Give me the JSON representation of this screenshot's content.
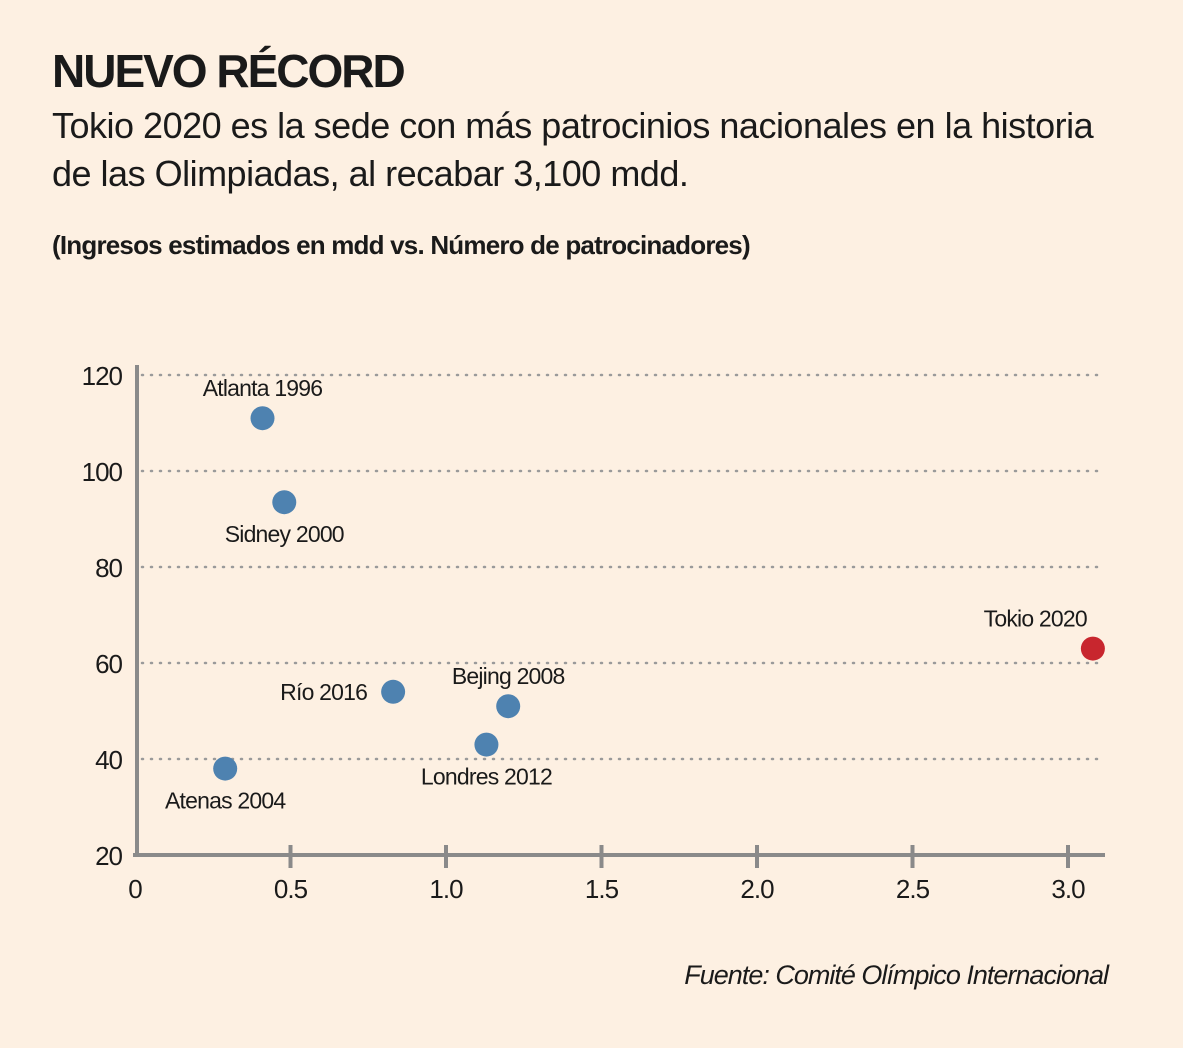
{
  "title": "NUEVO RÉCORD",
  "subtitle": "Tokio 2020 es la sede con más patrocinios nacionales en la historia de las Olimpiadas, al recabar 3,100 mdd.",
  "caption": "(Ingresos estimados en mdd vs. Número de patrocinadores)",
  "source": "Fuente: Comité Olímpico Internacional",
  "chart_data": {
    "type": "scatter",
    "xlim": [
      0,
      3.1
    ],
    "ylim": [
      20,
      120
    ],
    "x_ticks": [
      "0",
      "0.5",
      "1.0",
      "1.5",
      "2.0",
      "2.5",
      "3.0"
    ],
    "x_tick_values": [
      0,
      0.5,
      1.0,
      1.5,
      2.0,
      2.5,
      3.0
    ],
    "y_ticks": [
      "20",
      "40",
      "60",
      "80",
      "100",
      "120"
    ],
    "y_tick_values": [
      20,
      40,
      60,
      80,
      100,
      120
    ],
    "grid": "horizontal dotted",
    "colors": {
      "default": "#4e82b0",
      "highlight": "#c8262e",
      "axis": "#8a8a8a",
      "grid": "#9a9a9a"
    },
    "points": [
      {
        "label": "Atlanta 1996",
        "x": 0.41,
        "y": 111,
        "label_pos": "above",
        "highlight": false
      },
      {
        "label": "Sidney 2000",
        "x": 0.48,
        "y": 93.5,
        "label_pos": "below",
        "highlight": false
      },
      {
        "label": "Atenas 2004",
        "x": 0.29,
        "y": 38,
        "label_pos": "below",
        "highlight": false
      },
      {
        "label": "Bejing 2008",
        "x": 1.2,
        "y": 51,
        "label_pos": "above",
        "highlight": false
      },
      {
        "label": "Londres 2012",
        "x": 1.13,
        "y": 43,
        "label_pos": "below",
        "highlight": false
      },
      {
        "label": "Río 2016",
        "x": 0.83,
        "y": 54,
        "label_pos": "left",
        "highlight": false
      },
      {
        "label": "Tokio 2020",
        "x": 3.08,
        "y": 63,
        "label_pos": "above-left",
        "highlight": true
      }
    ]
  }
}
